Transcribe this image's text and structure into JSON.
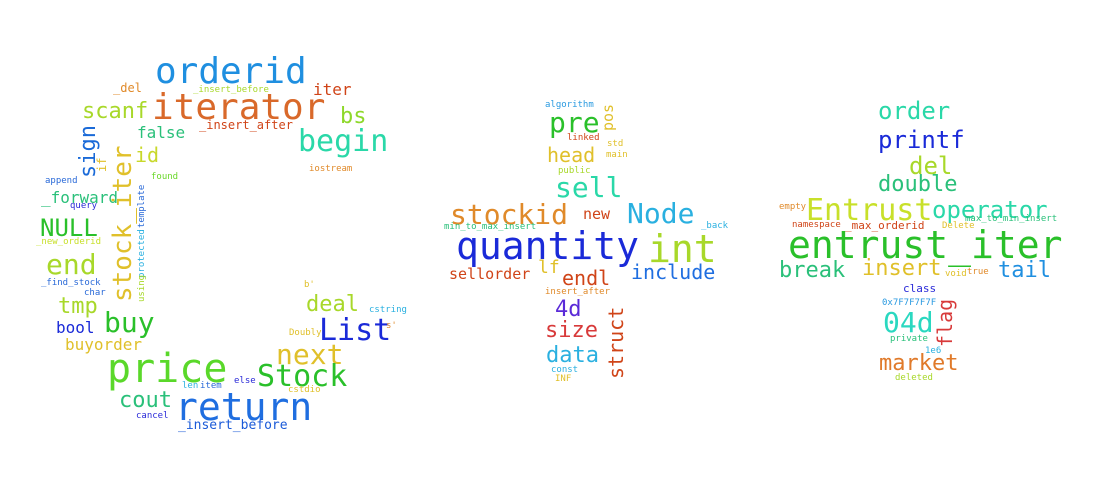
{
  "cloud": {
    "words": [
      {
        "id": "orderid",
        "text": "orderid",
        "color": "#1f8fe0"
      },
      {
        "id": "iterator",
        "text": "iterator",
        "color": "#d9692a"
      },
      {
        "id": "iter1",
        "text": "iter",
        "color": "#d04418"
      },
      {
        "id": "del1",
        "text": "_del",
        "color": "#e08a2a"
      },
      {
        "id": "insert-before1",
        "text": "_insert_before",
        "color": "#a8d82a"
      },
      {
        "id": "scanf",
        "text": "scanf",
        "color": "#a8d82a"
      },
      {
        "id": "bs",
        "text": "bs",
        "color": "#8ed82a"
      },
      {
        "id": "false",
        "text": "false",
        "color": "#2ac07a"
      },
      {
        "id": "insert-after1",
        "text": "_insert_after",
        "color": "#d04418"
      },
      {
        "id": "begin",
        "text": "begin",
        "color": "#2ad8a8"
      },
      {
        "id": "sign",
        "text": "sign",
        "color": "#1a6ad8"
      },
      {
        "id": "id",
        "text": "id",
        "color": "#c8d82a"
      },
      {
        "id": "stock-iter",
        "text": "stock_iter",
        "color": "#e0c02a"
      },
      {
        "id": "if",
        "text": "if",
        "color": "#e0c02a"
      },
      {
        "id": "iostream",
        "text": "iostream",
        "color": "#e08a2a"
      },
      {
        "id": "append",
        "text": "append",
        "color": "#2a6ad8"
      },
      {
        "id": "found",
        "text": "found",
        "color": "#6ad82a"
      },
      {
        "id": "forward",
        "text": "_forward",
        "color": "#2ac07a"
      },
      {
        "id": "query",
        "text": "query",
        "color": "#2a2ad8"
      },
      {
        "id": "template",
        "text": "template",
        "color": "#2a6ad8"
      },
      {
        "id": "null",
        "text": "NULL",
        "color": "#2ac02a"
      },
      {
        "id": "new-orderid",
        "text": "_new_orderid",
        "color": "#c8e02a"
      },
      {
        "id": "protected",
        "text": "protected",
        "color": "#2ab0e0"
      },
      {
        "id": "using",
        "text": "using",
        "color": "#a8d82a"
      },
      {
        "id": "end",
        "text": "end",
        "color": "#a8d82a"
      },
      {
        "id": "find-stock",
        "text": "_find_stock",
        "color": "#2a6ad8"
      },
      {
        "id": "char",
        "text": "char",
        "color": "#2a6ad8"
      },
      {
        "id": "tmp",
        "text": "tmp",
        "color": "#a8d82a"
      },
      {
        "id": "buy",
        "text": "buy",
        "color": "#2ac02a"
      },
      {
        "id": "bool",
        "text": "bool",
        "color": "#1a2ad8"
      },
      {
        "id": "buyorder",
        "text": "buyorder",
        "color": "#e0c02a"
      },
      {
        "id": "price",
        "text": "price",
        "color": "#5ad82a"
      },
      {
        "id": "len",
        "text": "len",
        "color": "#2ab0e0"
      },
      {
        "id": "item",
        "text": "item",
        "color": "#2a6ad8"
      },
      {
        "id": "else",
        "text": "else",
        "color": "#2a2ad8"
      },
      {
        "id": "cout",
        "text": "cout",
        "color": "#2ac07a"
      },
      {
        "id": "return",
        "text": "return",
        "color": "#1f6ee0"
      },
      {
        "id": "cancel",
        "text": "cancel",
        "color": "#2a2ad8"
      },
      {
        "id": "insert-before2",
        "text": "_insert_before",
        "color": "#1a5ad8"
      },
      {
        "id": "b-prime1",
        "text": "b'",
        "color": "#e0c02a"
      },
      {
        "id": "deal",
        "text": "deal",
        "color": "#a8d82a"
      },
      {
        "id": "cstring",
        "text": "cstring",
        "color": "#2ab0e0"
      },
      {
        "id": "list",
        "text": "List",
        "color": "#1a2ad8"
      },
      {
        "id": "s-prime",
        "text": "s'",
        "color": "#e08a2a"
      },
      {
        "id": "doubly",
        "text": "Doubly",
        "color": "#e0c02a"
      },
      {
        "id": "next",
        "text": "next",
        "color": "#e0c02a"
      },
      {
        "id": "stock",
        "text": "Stock",
        "color": "#2ac02a"
      },
      {
        "id": "cstdio",
        "text": "cstdio",
        "color": "#e0c02a"
      },
      {
        "id": "algorithm",
        "text": "algorithm",
        "color": "#2a9ae0"
      },
      {
        "id": "pre",
        "text": "pre",
        "color": "#2ac02a"
      },
      {
        "id": "pos",
        "text": "pos",
        "color": "#e0c02a"
      },
      {
        "id": "linked",
        "text": "linked",
        "color": "#d04418"
      },
      {
        "id": "std",
        "text": "std",
        "color": "#e0c02a"
      },
      {
        "id": "head",
        "text": "head",
        "color": "#e0c02a"
      },
      {
        "id": "main",
        "text": "main",
        "color": "#e0c02a"
      },
      {
        "id": "public",
        "text": "public",
        "color": "#a8d82a"
      },
      {
        "id": "sell",
        "text": "sell",
        "color": "#2ad8a8"
      },
      {
        "id": "stockid",
        "text": "stockid",
        "color": "#e08a2a"
      },
      {
        "id": "new",
        "text": "new",
        "color": "#d04418"
      },
      {
        "id": "node",
        "text": "Node",
        "color": "#2ab0e0"
      },
      {
        "id": "back",
        "text": "_back",
        "color": "#2ab0e0"
      },
      {
        "id": "min-to-max",
        "text": "min_to_max_insert",
        "color": "#2ac07a"
      },
      {
        "id": "quantity",
        "text": "quantity",
        "color": "#1a2ad8"
      },
      {
        "id": "int",
        "text": "int",
        "color": "#a8d82a"
      },
      {
        "id": "include",
        "text": "include",
        "color": "#1f6ee0"
      },
      {
        "id": "sellorder",
        "text": "sellorder",
        "color": "#d04418"
      },
      {
        "id": "lf",
        "text": "lf",
        "color": "#e0c02a"
      },
      {
        "id": "endl",
        "text": "endl",
        "color": "#d04418"
      },
      {
        "id": "insert-after2",
        "text": "insert_after",
        "color": "#e08a2a"
      },
      {
        "id": "4d",
        "text": "4d",
        "color": "#5a2ad8"
      },
      {
        "id": "size",
        "text": "size",
        "color": "#d83a3a"
      },
      {
        "id": "struct",
        "text": "struct",
        "color": "#d04418"
      },
      {
        "id": "data",
        "text": "data",
        "color": "#2ab0e0"
      },
      {
        "id": "const",
        "text": "const",
        "color": "#2ab0e0"
      },
      {
        "id": "inf",
        "text": "INF",
        "color": "#e0c02a"
      },
      {
        "id": "order",
        "text": "order",
        "color": "#2ad8a8"
      },
      {
        "id": "printf",
        "text": "printf",
        "color": "#1a2ad8"
      },
      {
        "id": "del2",
        "text": "del",
        "color": "#a8d82a"
      },
      {
        "id": "double",
        "text": "double",
        "color": "#2ac07a"
      },
      {
        "id": "empty",
        "text": "empty",
        "color": "#e08a2a"
      },
      {
        "id": "entrust",
        "text": "Entrust",
        "color": "#c8e02a"
      },
      {
        "id": "operator",
        "text": "operator",
        "color": "#2ad8a8"
      },
      {
        "id": "namespace",
        "text": "namespace",
        "color": "#d04418"
      },
      {
        "id": "max-orderid",
        "text": "_max_orderid",
        "color": "#d04418"
      },
      {
        "id": "max-to-min",
        "text": "max_to_min_insert",
        "color": "#2ac07a"
      },
      {
        "id": "delete",
        "text": "Delete",
        "color": "#e0c02a"
      },
      {
        "id": "entrust-iter",
        "text": "entrust_iter",
        "color": "#2ac02a"
      },
      {
        "id": "break",
        "text": "break",
        "color": "#2ac07a"
      },
      {
        "id": "insert",
        "text": "insert",
        "color": "#e0c02a"
      },
      {
        "id": "tail",
        "text": "tail",
        "color": "#1f8fe0"
      },
      {
        "id": "void",
        "text": "void",
        "color": "#e0c02a"
      },
      {
        "id": "true",
        "text": "true",
        "color": "#e08a2a"
      },
      {
        "id": "class",
        "text": "class",
        "color": "#2a2ad8"
      },
      {
        "id": "hex",
        "text": "0x7F7F7F7F",
        "color": "#2a9ae0"
      },
      {
        "id": "flag",
        "text": "flag",
        "color": "#d83a3a"
      },
      {
        "id": "04d",
        "text": "04d",
        "color": "#2ad8c0"
      },
      {
        "id": "private",
        "text": "private",
        "color": "#2ac07a"
      },
      {
        "id": "1e6",
        "text": "1e6",
        "color": "#2ab0e0"
      },
      {
        "id": "market",
        "text": "market",
        "color": "#e07a2a"
      },
      {
        "id": "deleted",
        "text": "deleted",
        "color": "#a8d82a"
      }
    ]
  }
}
